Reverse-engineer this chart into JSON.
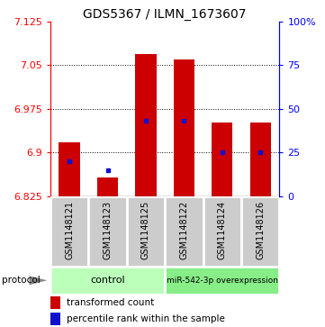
{
  "title": "GDS5367 / ILMN_1673607",
  "samples": [
    "GSM1148121",
    "GSM1148123",
    "GSM1148125",
    "GSM1148122",
    "GSM1148124",
    "GSM1148126"
  ],
  "groups": [
    "control",
    "control",
    "control",
    "miR-542-3p overexpression",
    "miR-542-3p overexpression",
    "miR-542-3p overexpression"
  ],
  "red_values": [
    6.917,
    6.857,
    7.068,
    7.06,
    6.952,
    6.952
  ],
  "blue_pct": [
    20,
    15,
    43,
    43,
    25,
    25
  ],
  "y_min": 6.825,
  "y_max": 7.125,
  "y_ticks": [
    6.825,
    6.9,
    6.975,
    7.05,
    7.125
  ],
  "y_tick_labels": [
    "6.825",
    "6.9",
    "6.975",
    "7.05",
    "7.125"
  ],
  "right_y_ticks_pct": [
    0,
    25,
    50,
    75,
    100
  ],
  "right_y_tick_labels": [
    "0",
    "25",
    "50",
    "75",
    "100%"
  ],
  "bar_color": "#cc0000",
  "blue_color": "#1111cc",
  "control_green": "#aaffaa",
  "overexp_green": "#88ee88",
  "title_fontsize": 10,
  "tick_fontsize": 8,
  "label_fontsize": 7,
  "bar_width": 0.55
}
